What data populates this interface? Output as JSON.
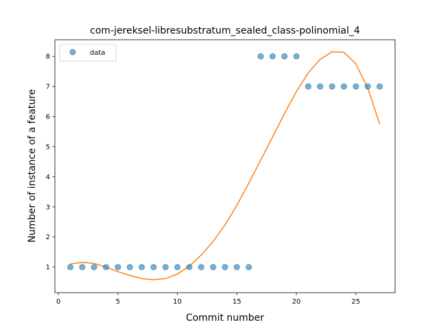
{
  "chart_data": {
    "type": "scatter",
    "title": "com-jereksel-libresubstratum_sealed_class-polinomial_4",
    "xlabel": "Commit number",
    "ylabel": "Number of instance of a feature",
    "xlim": [
      -0.3,
      28.3
    ],
    "ylim": [
      0.15,
      8.55
    ],
    "xticks": [
      0,
      5,
      10,
      15,
      20,
      25
    ],
    "yticks": [
      1,
      2,
      3,
      4,
      5,
      6,
      7,
      8
    ],
    "legend_position": "top-left",
    "grid": false,
    "series": [
      {
        "name": "data",
        "kind": "scatter",
        "color": "#1f77b4",
        "x": [
          1,
          2,
          3,
          4,
          5,
          6,
          7,
          8,
          9,
          10,
          11,
          12,
          13,
          14,
          15,
          16,
          17,
          18,
          19,
          20,
          21,
          22,
          23,
          24,
          25,
          26,
          27
        ],
        "y": [
          1,
          1,
          1,
          1,
          1,
          1,
          1,
          1,
          1,
          1,
          1,
          1,
          1,
          1,
          1,
          1,
          8,
          8,
          8,
          8,
          7,
          7,
          7,
          7,
          7,
          7,
          7
        ]
      },
      {
        "kind": "line",
        "color": "#ff7f0e",
        "x": [
          1,
          2,
          3,
          4,
          5,
          6,
          7,
          8,
          9,
          10,
          11,
          12,
          13,
          14,
          15,
          16,
          17,
          18,
          19,
          20,
          21,
          22,
          23,
          24,
          25,
          26,
          27
        ],
        "y": [
          1.1,
          1.16,
          1.12,
          1.0,
          0.85,
          0.72,
          0.62,
          0.58,
          0.62,
          0.77,
          1.03,
          1.4,
          1.85,
          2.4,
          3.05,
          3.78,
          4.55,
          5.32,
          6.1,
          6.83,
          7.45,
          7.9,
          8.15,
          8.13,
          7.75,
          6.95,
          5.75
        ]
      }
    ]
  }
}
